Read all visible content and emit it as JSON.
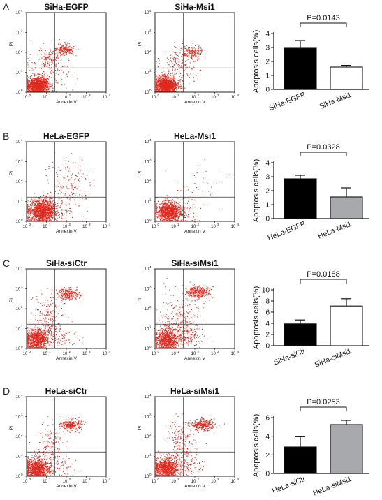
{
  "panels": [
    {
      "letter": "A",
      "flow": [
        {
          "title": "SiHa-EGFP",
          "xlabel": "Annexin V",
          "ylabel": "PI"
        },
        {
          "title": "SiHa-Msi1",
          "xlabel": "Annexin V",
          "ylabel": "PI"
        }
      ],
      "bar": {
        "p_label": "P=0.0143",
        "ylabel": "Apoptosis cells(%)"
      }
    },
    {
      "letter": "B",
      "flow": [
        {
          "title": "HeLa-EGFP",
          "xlabel": "Annexin V",
          "ylabel": "PI"
        },
        {
          "title": "HeLa-Msi1",
          "xlabel": "Annexin V",
          "ylabel": "PI"
        }
      ],
      "bar": {
        "p_label": "P=0.0328",
        "ylabel": "Apoptosis cells(%)"
      }
    },
    {
      "letter": "C",
      "flow": [
        {
          "title": "SiHa-siCtr",
          "xlabel": "Annexin V",
          "ylabel": "PI"
        },
        {
          "title": "SiHa-siMsi1",
          "xlabel": "Annexin V",
          "ylabel": "PI"
        }
      ],
      "bar": {
        "p_label": "P=0.0188",
        "ylabel": "Apoptosis cells(%)"
      }
    },
    {
      "letter": "D",
      "flow": [
        {
          "title": "HeLa-siCtr",
          "xlabel": "Annexin V",
          "ylabel": "PI"
        },
        {
          "title": "HeLa-siMsi1",
          "xlabel": "Annexin V",
          "ylabel": "PI"
        }
      ],
      "bar": {
        "p_label": "P=0.0253",
        "ylabel": "Apoptosis cells(%)"
      }
    }
  ],
  "flow_axis_ticks": [
    "10",
    "10",
    "10",
    "10",
    "10"
  ],
  "flow_axis_exponents": [
    "0",
    "1",
    "2",
    "3",
    "4"
  ],
  "colors": {
    "dots": "#e0281e",
    "black_bar": "#000000",
    "white_bar": "#ffffff",
    "gray_bar": "#a7a9ac"
  },
  "chart_data": [
    {
      "type": "bar",
      "categories": [
        "SiHa-EGFP",
        "SiHa-Msi1"
      ],
      "values": [
        2.95,
        1.6
      ],
      "errors": [
        0.55,
        0.12
      ],
      "bar_colors": [
        "#000000",
        "#ffffff"
      ],
      "ylabel": "Apoptosis cells(%)",
      "ylim": [
        0,
        4
      ],
      "yticks": [
        "0",
        "1",
        "2",
        "3",
        "4"
      ],
      "annotation": "P=0.0143"
    },
    {
      "type": "bar",
      "categories": [
        "HeLa-EGFP",
        "HeLa-Msi1"
      ],
      "values": [
        2.85,
        1.55
      ],
      "errors": [
        0.25,
        0.65
      ],
      "bar_colors": [
        "#000000",
        "#a7a9ac"
      ],
      "ylabel": "Apoptosis cells(%)",
      "ylim": [
        0,
        4
      ],
      "yticks": [
        "0",
        "1",
        "2",
        "3",
        "4"
      ],
      "annotation": "P=0.0328"
    },
    {
      "type": "bar",
      "categories": [
        "SiHa-siCtr",
        "SiHa-siMsi1"
      ],
      "values": [
        3.9,
        7.1
      ],
      "errors": [
        0.7,
        1.3
      ],
      "bar_colors": [
        "#000000",
        "#ffffff"
      ],
      "ylabel": "Apoptosis cells(%)",
      "ylim": [
        0,
        10
      ],
      "yticks": [
        "0",
        "2",
        "4",
        "6",
        "8",
        "10"
      ],
      "annotation": "P=0.0188"
    },
    {
      "type": "bar",
      "categories": [
        "HeLa-siCtr",
        "HeLa-siMsi1"
      ],
      "values": [
        2.85,
        5.25
      ],
      "errors": [
        1.1,
        0.45
      ],
      "bar_colors": [
        "#000000",
        "#a7a9ac"
      ],
      "ylabel": "Apoptosis cells(%)",
      "ylim": [
        0,
        6
      ],
      "yticks": [
        "0",
        "2",
        "4",
        "6"
      ],
      "annotation": "P=0.0253"
    }
  ]
}
